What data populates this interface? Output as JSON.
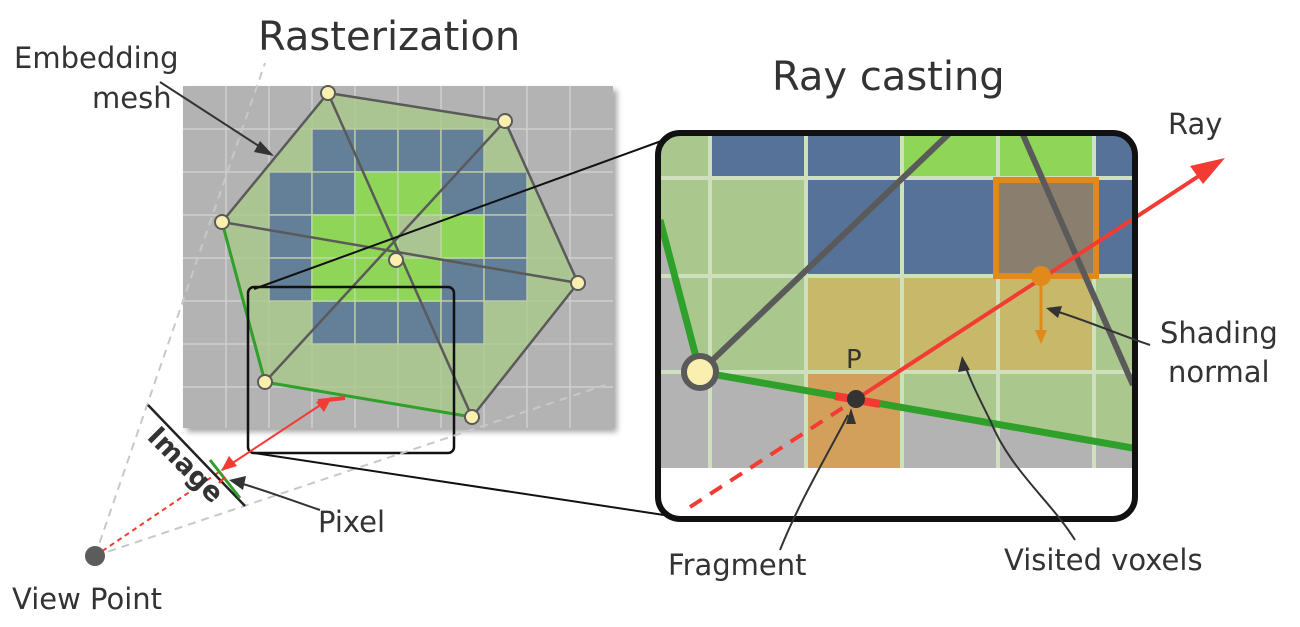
{
  "titles": {
    "left": "Rasterization",
    "right": "Ray casting"
  },
  "labels": {
    "embedding_line1": "Embedding",
    "embedding_line2": "mesh",
    "image": "Image",
    "pixel": "Pixel",
    "view_point": "View Point",
    "ray": "Ray",
    "shading_line1": "Shading",
    "shading_line2": "normal",
    "point_p": "P",
    "fragment": "Fragment",
    "visited_voxels": "Visited voxels"
  },
  "colors": {
    "grid_gray": "#b3b3b3",
    "mesh_green": "#a9c98a",
    "voxel_blue": "#577299",
    "voxel_light_green": "#8fd557",
    "voxel_visited": "#c8b96a",
    "voxel_fragment": "#d2a05b",
    "shading_orange": "#e08a1c",
    "ray_red": "#f23b32",
    "edge_green": "#2fa02a",
    "vertex_fill": "#fbefb0",
    "edge_gray": "#5a5a5a"
  }
}
